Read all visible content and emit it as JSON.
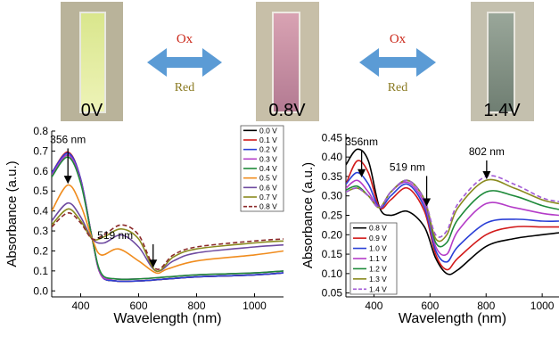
{
  "photos": [
    {
      "label": "0V",
      "colors": [
        "#d9e68c",
        "#eef3b8"
      ]
    },
    {
      "label": "0.8V",
      "colors": [
        "#d9a3b3",
        "#b37a92"
      ]
    },
    {
      "label": "1.4V",
      "colors": [
        "#9aa79a",
        "#6f7e72"
      ]
    }
  ],
  "arrows": [
    {
      "top": "Ox",
      "bottom": "Red",
      "top_color": "#cc2a1c",
      "bottom_color": "#8a7a22",
      "fill": "#5b9bd5"
    },
    {
      "top": "Ox",
      "bottom": "Red",
      "top_color": "#cc2a1c",
      "bottom_color": "#8a7a22",
      "fill": "#5b9bd5"
    }
  ],
  "chart_data": [
    {
      "type": "line",
      "xlabel": "Wavelength (nm)",
      "ylabel": "Absorbance (a.u.)",
      "xlim": [
        300,
        1100
      ],
      "ylim": [
        -0.03,
        0.8
      ],
      "xticks": [
        400,
        600,
        800,
        1000
      ],
      "yticks": [
        0.0,
        0.1,
        0.2,
        0.3,
        0.4,
        0.5,
        0.6,
        0.7,
        0.8
      ],
      "ytick_labels": [
        "0.0",
        "0.1",
        "0.2",
        "0.3",
        "0.4",
        "0.5",
        "0.6",
        "0.7",
        "0.8"
      ],
      "legend": "top-right",
      "annotations": [
        {
          "text": "356 nm",
          "x": 356,
          "y": 0.74,
          "arrow_to": [
            356,
            0.54
          ]
        },
        {
          "text": "519 nm",
          "x": 519,
          "y": 0.26,
          "arrow_to": [
            650,
            0.12
          ]
        }
      ],
      "series": [
        {
          "name": "0.0 V",
          "color": "#000000",
          "dash": false,
          "points": [
            [
              300,
              0.58
            ],
            [
              356,
              0.68
            ],
            [
              400,
              0.55
            ],
            [
              440,
              0.26
            ],
            [
              470,
              0.08
            ],
            [
              520,
              0.05
            ],
            [
              600,
              0.05
            ],
            [
              700,
              0.06
            ],
            [
              800,
              0.07
            ],
            [
              1000,
              0.08
            ],
            [
              1100,
              0.09
            ]
          ]
        },
        {
          "name": "0.1 V",
          "color": "#d21b1b",
          "dash": false,
          "points": [
            [
              300,
              0.59
            ],
            [
              356,
              0.695
            ],
            [
              400,
              0.56
            ],
            [
              440,
              0.26
            ],
            [
              470,
              0.08
            ],
            [
              520,
              0.05
            ],
            [
              600,
              0.05
            ],
            [
              700,
              0.06
            ],
            [
              800,
              0.07
            ],
            [
              1000,
              0.08
            ],
            [
              1100,
              0.09
            ]
          ]
        },
        {
          "name": "0.2 V",
          "color": "#2a3fd6",
          "dash": false,
          "points": [
            [
              300,
              0.59
            ],
            [
              356,
              0.69
            ],
            [
              400,
              0.56
            ],
            [
              440,
              0.26
            ],
            [
              470,
              0.08
            ],
            [
              520,
              0.05
            ],
            [
              600,
              0.05
            ],
            [
              700,
              0.06
            ],
            [
              800,
              0.07
            ],
            [
              1000,
              0.08
            ],
            [
              1100,
              0.09
            ]
          ]
        },
        {
          "name": "0.3 V",
          "color": "#b43cc8",
          "dash": false,
          "points": [
            [
              300,
              0.58
            ],
            [
              356,
              0.68
            ],
            [
              400,
              0.55
            ],
            [
              440,
              0.26
            ],
            [
              470,
              0.08
            ],
            [
              520,
              0.06
            ],
            [
              600,
              0.06
            ],
            [
              700,
              0.07
            ],
            [
              800,
              0.08
            ],
            [
              1000,
              0.09
            ],
            [
              1100,
              0.1
            ]
          ]
        },
        {
          "name": "0.4 V",
          "color": "#1e8a3a",
          "dash": false,
          "points": [
            [
              300,
              0.57
            ],
            [
              356,
              0.67
            ],
            [
              400,
              0.54
            ],
            [
              440,
              0.26
            ],
            [
              470,
              0.09
            ],
            [
              520,
              0.06
            ],
            [
              600,
              0.06
            ],
            [
              700,
              0.07
            ],
            [
              800,
              0.08
            ],
            [
              1000,
              0.09
            ],
            [
              1100,
              0.1
            ]
          ]
        },
        {
          "name": "0.5 V",
          "color": "#f08c1e",
          "dash": false,
          "points": [
            [
              300,
              0.4
            ],
            [
              356,
              0.53
            ],
            [
              400,
              0.43
            ],
            [
              440,
              0.26
            ],
            [
              470,
              0.18
            ],
            [
              530,
              0.21
            ],
            [
              600,
              0.15
            ],
            [
              660,
              0.09
            ],
            [
              700,
              0.11
            ],
            [
              800,
              0.15
            ],
            [
              1000,
              0.18
            ],
            [
              1100,
              0.2
            ]
          ]
        },
        {
          "name": "0.6 V",
          "color": "#6e4aa0",
          "dash": false,
          "points": [
            [
              300,
              0.35
            ],
            [
              356,
              0.44
            ],
            [
              400,
              0.37
            ],
            [
              440,
              0.26
            ],
            [
              480,
              0.24
            ],
            [
              540,
              0.28
            ],
            [
              600,
              0.22
            ],
            [
              660,
              0.1
            ],
            [
              720,
              0.15
            ],
            [
              800,
              0.19
            ],
            [
              1000,
              0.22
            ],
            [
              1100,
              0.23
            ]
          ]
        },
        {
          "name": "0.7 V",
          "color": "#8a8a1e",
          "dash": false,
          "points": [
            [
              300,
              0.33
            ],
            [
              356,
              0.41
            ],
            [
              400,
              0.35
            ],
            [
              440,
              0.26
            ],
            [
              480,
              0.27
            ],
            [
              540,
              0.31
            ],
            [
              600,
              0.26
            ],
            [
              660,
              0.1
            ],
            [
              720,
              0.17
            ],
            [
              800,
              0.21
            ],
            [
              1000,
              0.24
            ],
            [
              1100,
              0.25
            ]
          ]
        },
        {
          "name": "0.8 V",
          "color": "#8b2a2a",
          "dash": true,
          "points": [
            [
              300,
              0.32
            ],
            [
              356,
              0.39
            ],
            [
              400,
              0.34
            ],
            [
              440,
              0.26
            ],
            [
              480,
              0.28
            ],
            [
              540,
              0.33
            ],
            [
              600,
              0.28
            ],
            [
              660,
              0.11
            ],
            [
              720,
              0.18
            ],
            [
              800,
              0.22
            ],
            [
              1000,
              0.25
            ],
            [
              1100,
              0.26
            ]
          ]
        }
      ]
    },
    {
      "type": "line",
      "xlabel": "Wavelength (nm)",
      "ylabel": "Absorbance (a.u.)",
      "xlim": [
        300,
        1060
      ],
      "ylim": [
        0.04,
        0.46
      ],
      "xticks": [
        400,
        600,
        800,
        1000
      ],
      "yticks": [
        0.05,
        0.1,
        0.15,
        0.2,
        0.25,
        0.3,
        0.35,
        0.4,
        0.45
      ],
      "ytick_labels": [
        "0.05",
        "0.10",
        "0.15",
        "0.20",
        "0.25",
        "0.30",
        "0.35",
        "0.40",
        "0.45"
      ],
      "legend": "bottom-left",
      "annotations": [
        {
          "text": "356nm",
          "x": 356,
          "y": 0.43,
          "arrow_to": [
            356,
            0.35
          ]
        },
        {
          "text": "519 nm",
          "x": 519,
          "y": 0.365,
          "arrow_to": [
            588,
            0.275
          ]
        },
        {
          "text": "802 nm",
          "x": 802,
          "y": 0.405,
          "arrow_to": [
            802,
            0.345
          ]
        }
      ],
      "series": [
        {
          "name": "0.8 V",
          "color": "#000000",
          "dash": false,
          "points": [
            [
              300,
              0.38
            ],
            [
              340,
              0.42
            ],
            [
              380,
              0.39
            ],
            [
              420,
              0.27
            ],
            [
              460,
              0.25
            ],
            [
              520,
              0.26
            ],
            [
              580,
              0.22
            ],
            [
              620,
              0.14
            ],
            [
              660,
              0.1
            ],
            [
              700,
              0.11
            ],
            [
              800,
              0.17
            ],
            [
              900,
              0.19
            ],
            [
              1000,
              0.2
            ],
            [
              1060,
              0.205
            ]
          ]
        },
        {
          "name": "0.9 V",
          "color": "#d21b1b",
          "dash": false,
          "points": [
            [
              300,
              0.33
            ],
            [
              340,
              0.39
            ],
            [
              380,
              0.36
            ],
            [
              420,
              0.27
            ],
            [
              460,
              0.29
            ],
            [
              520,
              0.32
            ],
            [
              580,
              0.26
            ],
            [
              620,
              0.15
            ],
            [
              660,
              0.11
            ],
            [
              700,
              0.14
            ],
            [
              800,
              0.2
            ],
            [
              900,
              0.22
            ],
            [
              1000,
              0.22
            ],
            [
              1060,
              0.22
            ]
          ]
        },
        {
          "name": "1.0 V",
          "color": "#2a3fd6",
          "dash": false,
          "points": [
            [
              300,
              0.33
            ],
            [
              340,
              0.36
            ],
            [
              380,
              0.33
            ],
            [
              420,
              0.27
            ],
            [
              460,
              0.3
            ],
            [
              520,
              0.33
            ],
            [
              580,
              0.27
            ],
            [
              620,
              0.16
            ],
            [
              660,
              0.13
            ],
            [
              700,
              0.17
            ],
            [
              800,
              0.23
            ],
            [
              900,
              0.24
            ],
            [
              1000,
              0.235
            ],
            [
              1060,
              0.235
            ]
          ]
        },
        {
          "name": "1.1 V",
          "color": "#b43cc8",
          "dash": false,
          "points": [
            [
              300,
              0.32
            ],
            [
              340,
              0.34
            ],
            [
              380,
              0.31
            ],
            [
              420,
              0.27
            ],
            [
              460,
              0.31
            ],
            [
              520,
              0.335
            ],
            [
              580,
              0.28
            ],
            [
              620,
              0.17
            ],
            [
              660,
              0.15
            ],
            [
              700,
              0.21
            ],
            [
              800,
              0.28
            ],
            [
              900,
              0.27
            ],
            [
              1000,
              0.255
            ],
            [
              1060,
              0.25
            ]
          ]
        },
        {
          "name": "1.2 V",
          "color": "#1e8a3a",
          "dash": false,
          "points": [
            [
              300,
              0.315
            ],
            [
              340,
              0.325
            ],
            [
              380,
              0.3
            ],
            [
              420,
              0.27
            ],
            [
              460,
              0.31
            ],
            [
              520,
              0.34
            ],
            [
              580,
              0.29
            ],
            [
              620,
              0.18
            ],
            [
              660,
              0.18
            ],
            [
              700,
              0.24
            ],
            [
              800,
              0.31
            ],
            [
              900,
              0.3
            ],
            [
              1000,
              0.275
            ],
            [
              1060,
              0.265
            ]
          ]
        },
        {
          "name": "1.3 V",
          "color": "#8a8a1e",
          "dash": false,
          "points": [
            [
              300,
              0.31
            ],
            [
              340,
              0.32
            ],
            [
              380,
              0.3
            ],
            [
              420,
              0.27
            ],
            [
              460,
              0.31
            ],
            [
              520,
              0.34
            ],
            [
              580,
              0.29
            ],
            [
              620,
              0.19
            ],
            [
              660,
              0.2
            ],
            [
              700,
              0.27
            ],
            [
              800,
              0.34
            ],
            [
              900,
              0.32
            ],
            [
              1000,
              0.29
            ],
            [
              1060,
              0.28
            ]
          ]
        },
        {
          "name": "1.4 V",
          "color": "#a25ad6",
          "dash": true,
          "points": [
            [
              300,
              0.31
            ],
            [
              340,
              0.32
            ],
            [
              380,
              0.3
            ],
            [
              420,
              0.27
            ],
            [
              460,
              0.31
            ],
            [
              520,
              0.34
            ],
            [
              580,
              0.29
            ],
            [
              620,
              0.2
            ],
            [
              660,
              0.21
            ],
            [
              700,
              0.28
            ],
            [
              800,
              0.35
            ],
            [
              900,
              0.33
            ],
            [
              1000,
              0.295
            ],
            [
              1060,
              0.285
            ]
          ]
        }
      ]
    }
  ]
}
